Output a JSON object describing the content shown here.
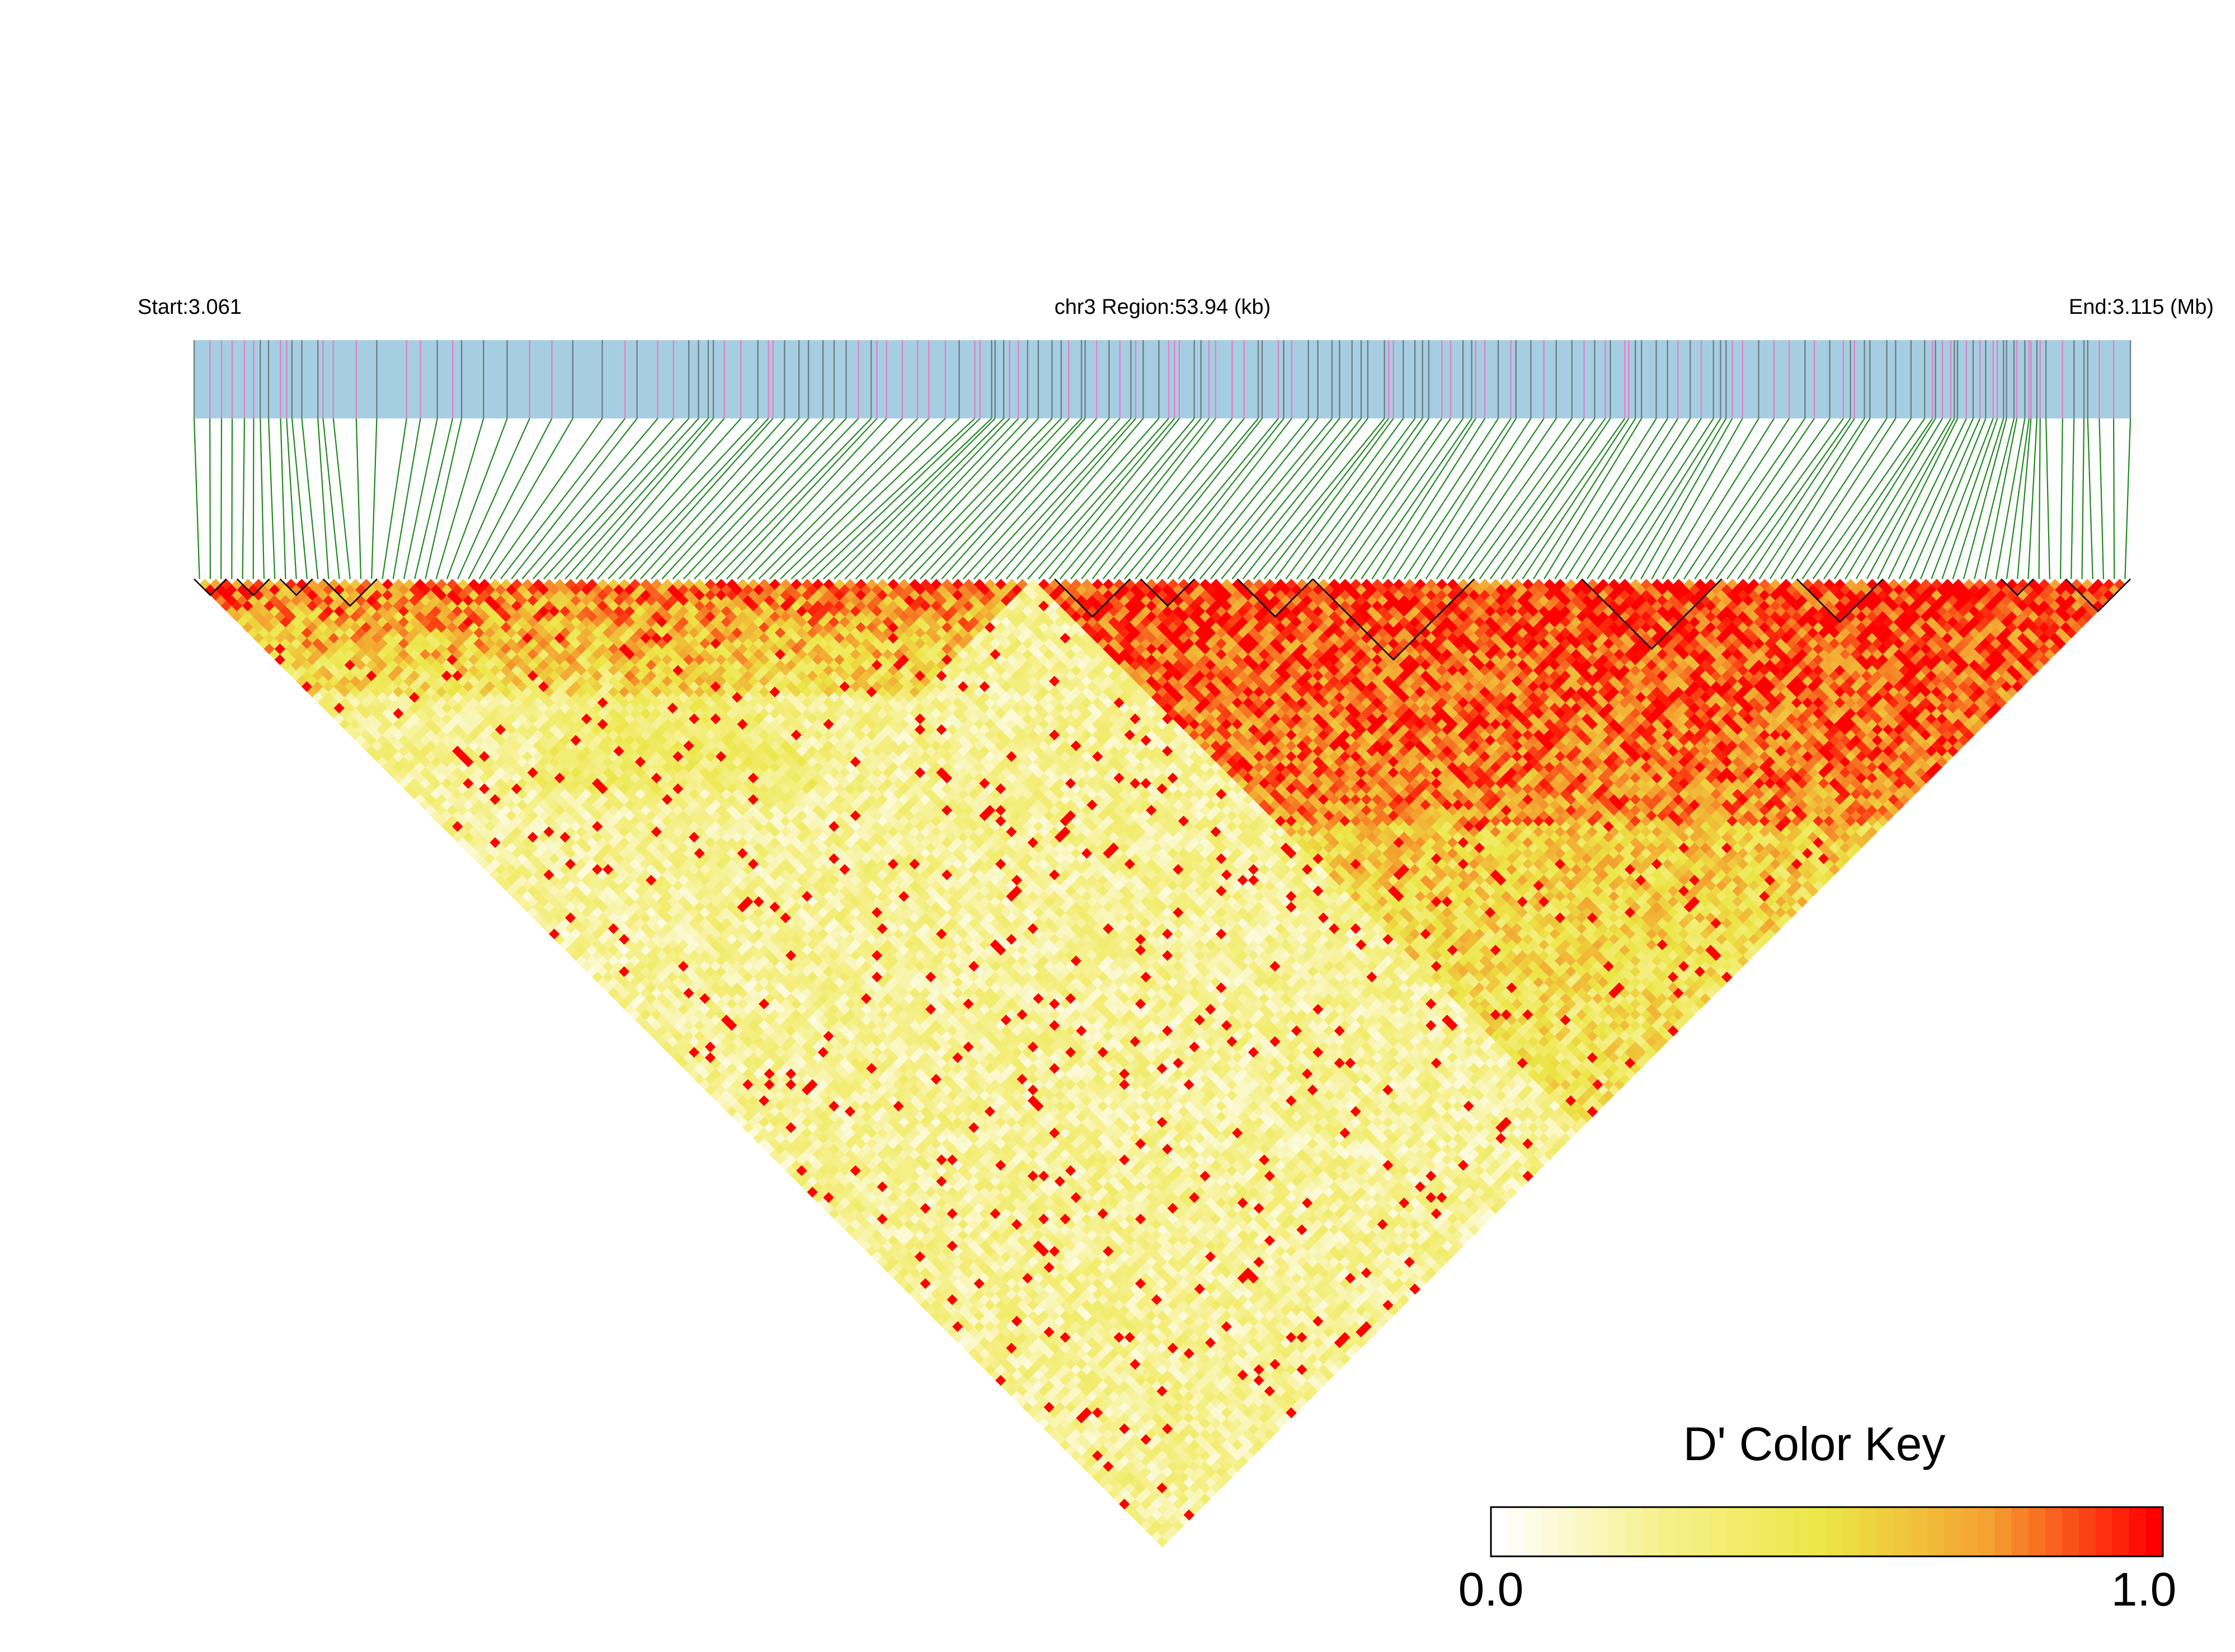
{
  "chart_data": {
    "type": "heatmap",
    "title": "",
    "header": {
      "start_label": "Start:3.061",
      "region_label": "chr3 Region:53.94 (kb)",
      "end_label": "End:3.115 (Mb)"
    },
    "region": {
      "chromosome": "chr3",
      "start_mb": 3.061,
      "end_mb": 3.115,
      "length_kb": 53.94
    },
    "snp_count": 180,
    "value_range": [
      0.0,
      1.0
    ],
    "colors": {
      "track_fill": "#a6cee3",
      "track_line_gray": "#6f7f7f",
      "track_line_pink": "#e47fc7",
      "connector": "#1f8a1f",
      "block_outline": "#000000",
      "scale": [
        "#ffffff",
        "#f6f08a",
        "#ece646",
        "#f4a030",
        "#ff0000"
      ]
    },
    "ld_blocks": [
      {
        "from_snp": 0,
        "to_snp": 2
      },
      {
        "from_snp": 4,
        "to_snp": 6
      },
      {
        "from_snp": 8,
        "to_snp": 10
      },
      {
        "from_snp": 12,
        "to_snp": 16
      },
      {
        "from_snp": 80,
        "to_snp": 86
      },
      {
        "from_snp": 88,
        "to_snp": 92
      },
      {
        "from_snp": 97,
        "to_snp": 103
      },
      {
        "from_snp": 104,
        "to_snp": 118
      },
      {
        "from_snp": 129,
        "to_snp": 141
      },
      {
        "from_snp": 149,
        "to_snp": 156
      },
      {
        "from_snp": 168,
        "to_snp": 170
      },
      {
        "from_snp": 174,
        "to_snp": 179
      }
    ],
    "color_key": {
      "title": "D' Color Key",
      "min_label": "0.0",
      "max_label": "1.0",
      "steps": 40
    }
  }
}
